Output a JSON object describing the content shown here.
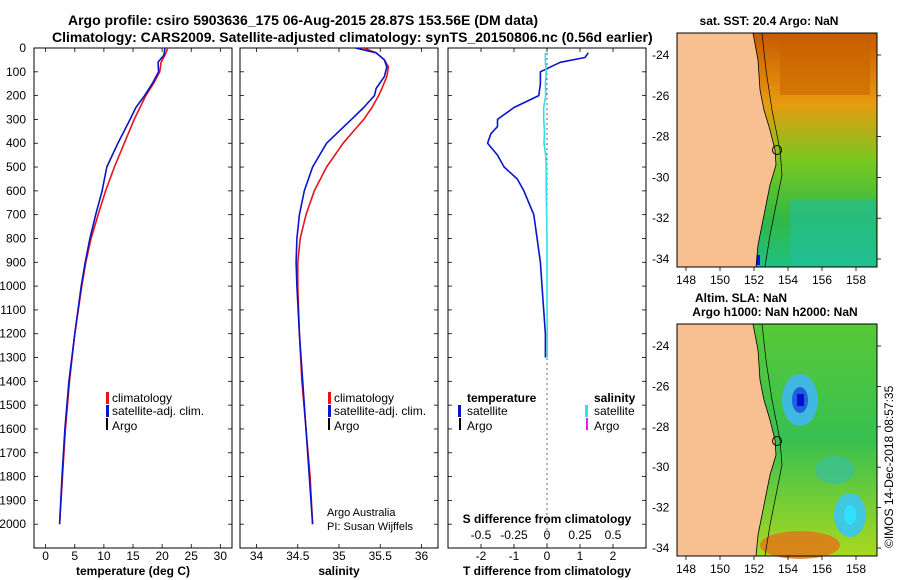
{
  "header": {
    "title_line1": "Argo profile: csiro 5903636_175 06-Aug-2015 28.87S 153.56E (DM data)",
    "title_line2": "Climatology: CARS2009. Satellite-adjusted climatology: synTS_20150806.nc (0.56d earlier)"
  },
  "colors": {
    "climatology": "#e8141a",
    "satellite": "#0a14c8",
    "argo": "#000000",
    "sat_salinity": "#30e0e8",
    "argo_salinity": "#e020e0",
    "land": "#f8c090"
  },
  "legend": {
    "climatology": "climatology",
    "satellite_adj": "satellite-adj. clim.",
    "argo": "Argo",
    "temperature": "temperature",
    "salinity": "salinity",
    "satellite": "satellite"
  },
  "credits": {
    "line1": "Argo Australia",
    "line2": "PI: Susan Wijffels",
    "imos": "©IMOS 14-Dec-2018 08:57:35"
  },
  "maps": {
    "sst_title": "sat. SST: 20.4 Argo: NaN",
    "sla_title1": "Altim. SLA: NaN",
    "sla_title2": "Argo h1000: NaN h2000: NaN",
    "lon_ticks": [
      "148",
      "150",
      "152",
      "154",
      "156",
      "158"
    ],
    "lat_ticks": [
      "-24",
      "-26",
      "-28",
      "-30",
      "-32",
      "-34"
    ]
  },
  "chart_data": [
    {
      "type": "line",
      "id": "temperature",
      "xlabel": "temperature (deg C)",
      "ylabel": "",
      "xlim": [
        -2,
        32
      ],
      "ylim": [
        2100,
        0
      ],
      "xticks": [
        0,
        5,
        10,
        15,
        20,
        25,
        30
      ],
      "yticks": [
        0,
        100,
        200,
        300,
        400,
        500,
        600,
        700,
        800,
        900,
        1000,
        1100,
        1200,
        1300,
        1400,
        1500,
        1600,
        1700,
        1800,
        1900,
        2000
      ],
      "series": [
        {
          "name": "climatology",
          "color_key": "climatology",
          "depth": [
            0,
            30,
            60,
            100,
            150,
            200,
            250,
            300,
            400,
            500,
            600,
            700,
            800,
            900,
            1000,
            1200,
            1400,
            1600,
            1800,
            2000
          ],
          "values": [
            21,
            20.5,
            19.8,
            19.6,
            18.5,
            17.2,
            16.2,
            15.2,
            13.5,
            11.8,
            10.3,
            9.0,
            7.8,
            6.9,
            6.2,
            5.0,
            4.1,
            3.4,
            2.9,
            2.4
          ]
        },
        {
          "name": "satellite-adj. clim.",
          "color_key": "satellite",
          "depth": [
            0,
            30,
            60,
            100,
            150,
            200,
            250,
            300,
            400,
            500,
            600,
            700,
            800,
            900,
            1000,
            1200,
            1400,
            1600,
            1800,
            2000
          ],
          "values": [
            20.5,
            20.3,
            19.3,
            19.4,
            18.3,
            17.0,
            15.5,
            14.5,
            12.4,
            10.5,
            9.7,
            8.6,
            7.6,
            6.8,
            6.1,
            5.0,
            4.0,
            3.3,
            2.8,
            2.4
          ]
        }
      ]
    },
    {
      "type": "line",
      "id": "salinity",
      "xlabel": "salinity",
      "ylabel": "",
      "xlim": [
        33.8,
        36.2
      ],
      "ylim": [
        2100,
        0
      ],
      "xticks": [
        34,
        34.5,
        35,
        35.5,
        36
      ],
      "tick_labels": [
        "34",
        "34.5",
        "35",
        "35.5",
        "36"
      ],
      "yticks": [
        0,
        100,
        200,
        300,
        400,
        500,
        600,
        700,
        800,
        900,
        1000,
        1100,
        1200,
        1300,
        1400,
        1500,
        1600,
        1700,
        1800,
        1900,
        2000
      ],
      "series": [
        {
          "name": "climatology",
          "color_key": "climatology",
          "depth": [
            0,
            20,
            50,
            80,
            120,
            170,
            200,
            250,
            300,
            400,
            500,
            600,
            700,
            800,
            900,
            1000,
            1200,
            1400,
            1600,
            1800,
            2000
          ],
          "values": [
            35.3,
            35.45,
            35.55,
            35.6,
            35.58,
            35.52,
            35.48,
            35.4,
            35.3,
            35.05,
            34.85,
            34.7,
            34.6,
            34.53,
            34.5,
            34.5,
            34.52,
            34.55,
            34.6,
            34.65,
            34.68
          ]
        },
        {
          "name": "satellite-adj. clim.",
          "color_key": "satellite",
          "depth": [
            0,
            20,
            50,
            80,
            120,
            170,
            200,
            250,
            300,
            400,
            500,
            600,
            700,
            800,
            900,
            1000,
            1200,
            1400,
            1600,
            1800,
            2000
          ],
          "values": [
            35.2,
            35.45,
            35.55,
            35.58,
            35.55,
            35.45,
            35.43,
            35.3,
            35.15,
            34.85,
            34.68,
            34.58,
            34.52,
            34.49,
            34.48,
            34.49,
            34.52,
            34.56,
            34.6,
            34.64,
            34.68
          ]
        }
      ]
    },
    {
      "type": "line",
      "id": "difference",
      "xlabel": "T difference from climatology",
      "xlabel2": "S difference from climatology",
      "xlim": [
        -3,
        3
      ],
      "ylim": [
        2100,
        0
      ],
      "xticks": [
        -2,
        -1,
        0,
        1,
        2
      ],
      "x2ticks": [
        -0.5,
        -0.25,
        0,
        0.25,
        0.5
      ],
      "x2_tick_labels": [
        "-0.5",
        "-0.25",
        "0",
        "0.25",
        "0.5"
      ],
      "yticks": [
        0,
        100,
        200,
        300,
        400,
        500,
        600,
        700,
        800,
        900,
        1000,
        1100,
        1200,
        1300,
        1400,
        1500,
        1600,
        1700,
        1800,
        1900,
        2000
      ],
      "series": [
        {
          "name": "temperature satellite",
          "color_key": "satellite",
          "depth": [
            20,
            40,
            60,
            100,
            150,
            200,
            250,
            300,
            330,
            360,
            400,
            450,
            500,
            550,
            600,
            700,
            800,
            900,
            1000,
            1100,
            1200,
            1300
          ],
          "values": [
            1.25,
            1.15,
            0.4,
            -0.2,
            -0.2,
            -0.25,
            -1.0,
            -1.5,
            -1.5,
            -1.7,
            -1.8,
            -1.5,
            -1.3,
            -0.9,
            -0.7,
            -0.4,
            -0.3,
            -0.2,
            -0.15,
            -0.1,
            -0.05,
            -0.05
          ]
        },
        {
          "name": "salinity satellite",
          "color_key": "sat_salinity",
          "depth": [
            20,
            60,
            100,
            150,
            200,
            250,
            300,
            350,
            400,
            450,
            500,
            550,
            600,
            700,
            800,
            900,
            1000,
            1100,
            1200,
            1300
          ],
          "values": [
            -0.05,
            -0.05,
            -0.025,
            -0.05,
            -0.04,
            -0.1,
            -0.1,
            -0.075,
            -0.09,
            -0.04,
            -0.025,
            -0.025,
            -0.025,
            -0.01,
            0,
            0,
            0,
            0.0,
            0.01,
            0.01
          ]
        }
      ]
    }
  ]
}
